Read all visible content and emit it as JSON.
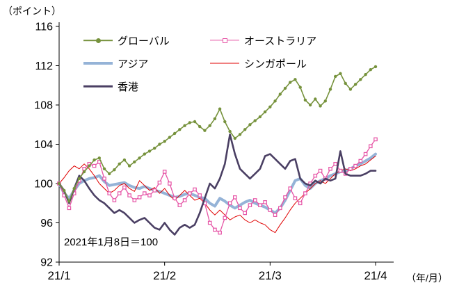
{
  "labels": {
    "y_unit": "（ポイント）",
    "x_unit": "（年/月）"
  },
  "chart_data": {
    "type": "line",
    "title": "",
    "annotation": "2021年1月8日＝100",
    "ylim": [
      92,
      116
    ],
    "y_ticks": [
      92,
      96,
      100,
      104,
      108,
      112,
      116
    ],
    "x_tick_labels": [
      "21/1",
      "21/2",
      "21/3",
      "21/4"
    ],
    "x_tick_indices": [
      0,
      21,
      42,
      63
    ],
    "grid": false,
    "legend_position": "top-left-inside",
    "series": [
      {
        "name": "グローバル",
        "color": "#76923c",
        "width": 1.6,
        "marker": "circle",
        "values": [
          100.0,
          99.3,
          98.2,
          99.5,
          100.5,
          101.2,
          101.8,
          102.4,
          102.6,
          101.5,
          101.0,
          101.4,
          102.0,
          102.4,
          101.8,
          102.2,
          102.6,
          103.0,
          103.3,
          103.6,
          104.0,
          104.3,
          104.7,
          105.1,
          105.5,
          105.9,
          106.2,
          106.3,
          105.8,
          105.4,
          105.9,
          106.6,
          107.6,
          106.3,
          105.3,
          104.6,
          105.0,
          105.5,
          106.0,
          106.4,
          106.8,
          107.3,
          107.8,
          108.4,
          109.1,
          109.7,
          110.3,
          110.6,
          109.8,
          108.5,
          108.0,
          108.6,
          107.9,
          108.4,
          109.6,
          110.9,
          111.2,
          110.2,
          109.6,
          110.1,
          110.6,
          111.1,
          111.6,
          111.9
        ]
      },
      {
        "name": "オーストラリア",
        "color": "#e653a5",
        "width": 1.3,
        "marker": "square",
        "values": [
          100.0,
          98.8,
          97.5,
          99.0,
          100.3,
          101.5,
          102.0,
          101.8,
          102.2,
          100.5,
          99.0,
          98.3,
          99.0,
          99.6,
          98.8,
          98.3,
          98.6,
          99.0,
          98.8,
          99.3,
          100.1,
          101.2,
          100.0,
          98.5,
          97.8,
          98.3,
          99.0,
          99.4,
          98.8,
          98.0,
          96.0,
          95.3,
          95.0,
          96.5,
          98.0,
          98.6,
          97.5,
          97.0,
          97.8,
          98.3,
          97.8,
          98.1,
          97.3,
          96.8,
          97.5,
          98.6,
          99.5,
          98.5,
          98.0,
          99.0,
          100.0,
          100.8,
          101.3,
          100.5,
          101.5,
          102.0,
          101.3,
          101.0,
          101.5,
          101.8,
          102.3,
          103.0,
          103.8,
          104.5
        ]
      },
      {
        "name": "アジア",
        "color": "#95b3d7",
        "width": 4,
        "marker": "none",
        "values": [
          100.0,
          99.0,
          98.5,
          99.3,
          100.0,
          100.3,
          100.5,
          100.6,
          100.8,
          100.2,
          99.8,
          99.9,
          100.0,
          100.1,
          99.8,
          99.6,
          99.5,
          99.7,
          99.5,
          99.3,
          99.2,
          99.0,
          98.8,
          98.6,
          98.7,
          98.9,
          99.0,
          98.8,
          98.6,
          98.5,
          98.0,
          97.7,
          98.5,
          98.2,
          97.8,
          97.5,
          97.8,
          98.1,
          98.3,
          98.0,
          97.8,
          97.6,
          97.3,
          97.0,
          97.5,
          98.3,
          99.3,
          100.3,
          100.5,
          99.8,
          99.5,
          100.0,
          100.3,
          100.5,
          100.8,
          101.0,
          101.2,
          101.3,
          101.5,
          101.8,
          102.0,
          102.3,
          102.6,
          103.0
        ]
      },
      {
        "name": "シンガポール",
        "color": "#e00000",
        "width": 1,
        "marker": "none",
        "values": [
          100.0,
          100.6,
          101.3,
          101.8,
          101.5,
          102.0,
          101.5,
          100.8,
          100.0,
          99.5,
          99.0,
          99.3,
          99.8,
          100.0,
          99.5,
          99.2,
          100.3,
          99.8,
          99.3,
          99.6,
          99.0,
          99.5,
          98.8,
          98.3,
          98.8,
          99.3,
          98.8,
          98.3,
          98.5,
          98.0,
          97.3,
          96.8,
          97.3,
          96.8,
          96.3,
          96.6,
          96.8,
          96.3,
          96.0,
          96.3,
          96.0,
          95.8,
          95.3,
          95.0,
          95.8,
          96.5,
          97.3,
          98.0,
          98.5,
          99.0,
          99.5,
          100.0,
          100.3,
          100.0,
          100.5,
          101.0,
          101.3,
          101.5,
          101.3,
          101.5,
          101.8,
          102.0,
          102.4,
          102.8
        ]
      },
      {
        "name": "香港",
        "color": "#4a3f63",
        "width": 2.6,
        "marker": "none",
        "values": [
          100.0,
          99.3,
          98.0,
          99.5,
          100.8,
          100.3,
          99.5,
          98.8,
          98.3,
          98.0,
          97.5,
          97.0,
          97.3,
          97.0,
          96.5,
          96.0,
          96.3,
          96.5,
          96.0,
          95.5,
          95.3,
          96.0,
          95.3,
          94.8,
          95.5,
          95.8,
          95.5,
          95.8,
          97.0,
          98.5,
          100.0,
          99.5,
          100.5,
          102.0,
          105.0,
          103.0,
          101.5,
          101.0,
          100.5,
          101.0,
          101.5,
          102.8,
          103.0,
          102.5,
          102.0,
          101.5,
          102.3,
          102.5,
          100.5,
          100.0,
          99.8,
          100.3,
          100.0,
          100.5,
          100.3,
          100.5,
          103.3,
          101.0,
          100.8,
          100.8,
          100.8,
          101.0,
          101.3,
          101.3
        ]
      }
    ]
  }
}
